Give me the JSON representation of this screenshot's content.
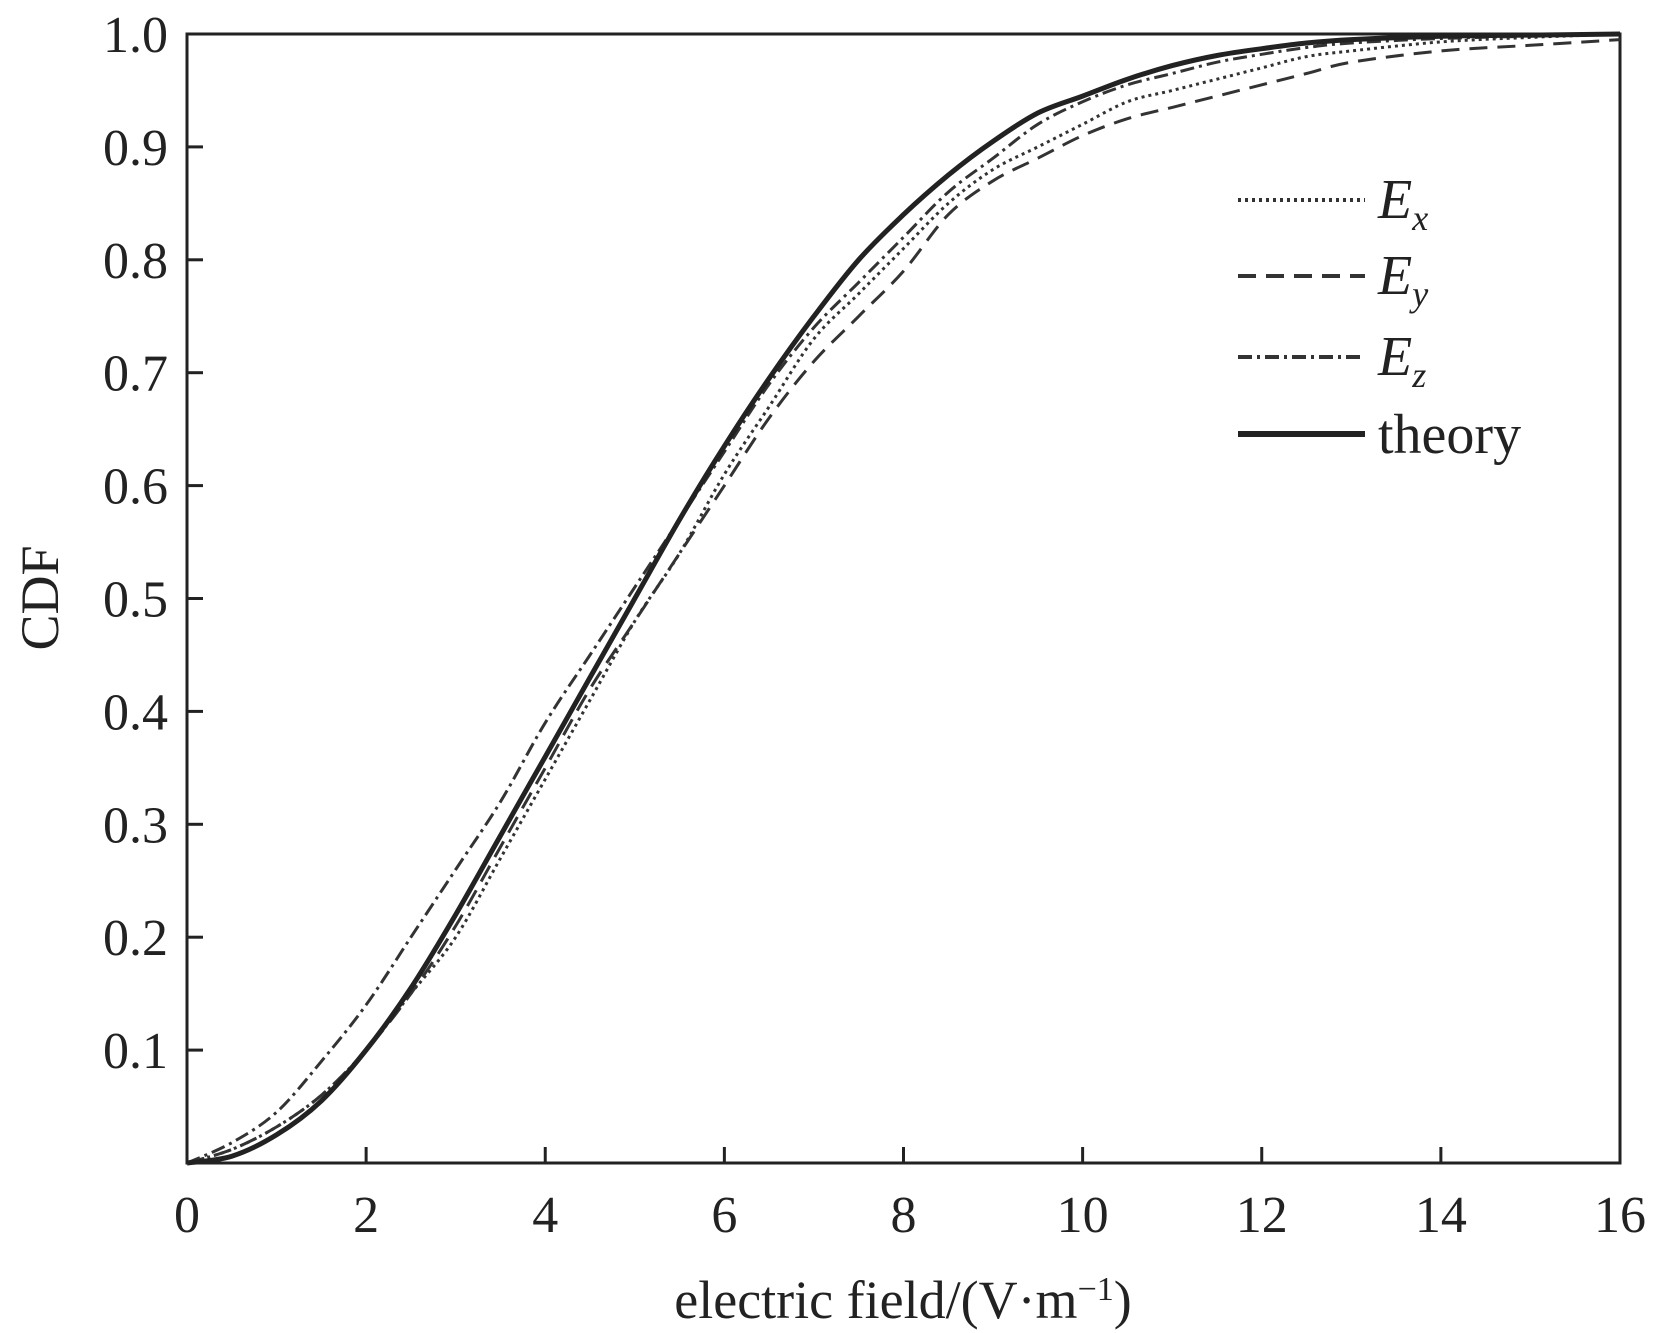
{
  "chart_data": {
    "type": "line",
    "title": "",
    "xlabel": "electric field/(V·m",
    "xlabel_sup": "−1",
    "xlabel_close": ")",
    "ylabel": "CDF",
    "xlim": [
      0,
      16
    ],
    "ylim": [
      0,
      1.0
    ],
    "x_ticks": [
      "0",
      "2",
      "4",
      "6",
      "8",
      "10",
      "12",
      "14",
      "16"
    ],
    "y_ticks": [
      "0.1",
      "0.2",
      "0.3",
      "0.4",
      "0.5",
      "0.6",
      "0.7",
      "0.8",
      "0.9",
      "1.0"
    ],
    "grid": false,
    "legend_position": "top-right",
    "series": [
      {
        "name": "E",
        "sub": "x",
        "style": "dotted",
        "color": "#333333",
        "x": [
          0,
          0.5,
          1,
          1.5,
          2,
          2.5,
          3,
          3.5,
          4,
          4.5,
          5,
          5.5,
          6,
          6.5,
          7,
          7.5,
          8,
          8.5,
          9,
          9.5,
          10,
          10.5,
          11,
          11.5,
          12,
          12.5,
          13,
          14,
          15,
          16
        ],
        "values": [
          0,
          0.012,
          0.032,
          0.06,
          0.1,
          0.15,
          0.2,
          0.27,
          0.34,
          0.41,
          0.48,
          0.54,
          0.61,
          0.67,
          0.73,
          0.77,
          0.81,
          0.85,
          0.88,
          0.9,
          0.92,
          0.94,
          0.95,
          0.96,
          0.97,
          0.98,
          0.985,
          0.993,
          0.997,
          1.0
        ]
      },
      {
        "name": "E",
        "sub": "y",
        "style": "dashed",
        "color": "#333333",
        "x": [
          0,
          0.5,
          1,
          1.5,
          2,
          2.5,
          3,
          3.5,
          4,
          4.5,
          5,
          5.5,
          6,
          6.5,
          7,
          7.5,
          8,
          8.5,
          9,
          9.5,
          10,
          10.5,
          11,
          11.5,
          12,
          12.5,
          13,
          14,
          15,
          16
        ],
        "values": [
          0,
          0.012,
          0.032,
          0.06,
          0.1,
          0.15,
          0.21,
          0.28,
          0.35,
          0.42,
          0.48,
          0.54,
          0.6,
          0.66,
          0.71,
          0.75,
          0.79,
          0.84,
          0.87,
          0.89,
          0.91,
          0.925,
          0.935,
          0.945,
          0.955,
          0.965,
          0.975,
          0.985,
          0.99,
          0.995
        ]
      },
      {
        "name": "E",
        "sub": "z",
        "style": "dashdot",
        "color": "#333333",
        "x": [
          0,
          0.5,
          1,
          1.5,
          2,
          2.5,
          3,
          3.5,
          4,
          4.5,
          5,
          5.5,
          6,
          6.5,
          7,
          7.5,
          8,
          8.5,
          9,
          9.5,
          10,
          10.5,
          11,
          11.5,
          12,
          12.5,
          13,
          14,
          15,
          16
        ],
        "values": [
          0,
          0.018,
          0.045,
          0.09,
          0.14,
          0.2,
          0.26,
          0.32,
          0.39,
          0.45,
          0.51,
          0.57,
          0.63,
          0.69,
          0.74,
          0.78,
          0.82,
          0.86,
          0.89,
          0.92,
          0.94,
          0.955,
          0.965,
          0.975,
          0.982,
          0.988,
          0.992,
          0.996,
          0.998,
          1.0
        ]
      },
      {
        "name": "theory",
        "style": "solid",
        "color": "#222222",
        "x": [
          0,
          0.5,
          1,
          1.5,
          2,
          2.5,
          3,
          3.5,
          4,
          4.5,
          5,
          5.5,
          6,
          6.5,
          7,
          7.5,
          8,
          8.5,
          9,
          9.5,
          10,
          10.5,
          11,
          11.5,
          12,
          12.5,
          13,
          14,
          15,
          16
        ],
        "values": [
          0,
          0.006,
          0.025,
          0.055,
          0.1,
          0.155,
          0.22,
          0.29,
          0.36,
          0.43,
          0.5,
          0.57,
          0.635,
          0.695,
          0.75,
          0.8,
          0.84,
          0.875,
          0.905,
          0.93,
          0.945,
          0.96,
          0.972,
          0.981,
          0.987,
          0.992,
          0.995,
          0.998,
          0.999,
          1.0
        ]
      }
    ]
  }
}
